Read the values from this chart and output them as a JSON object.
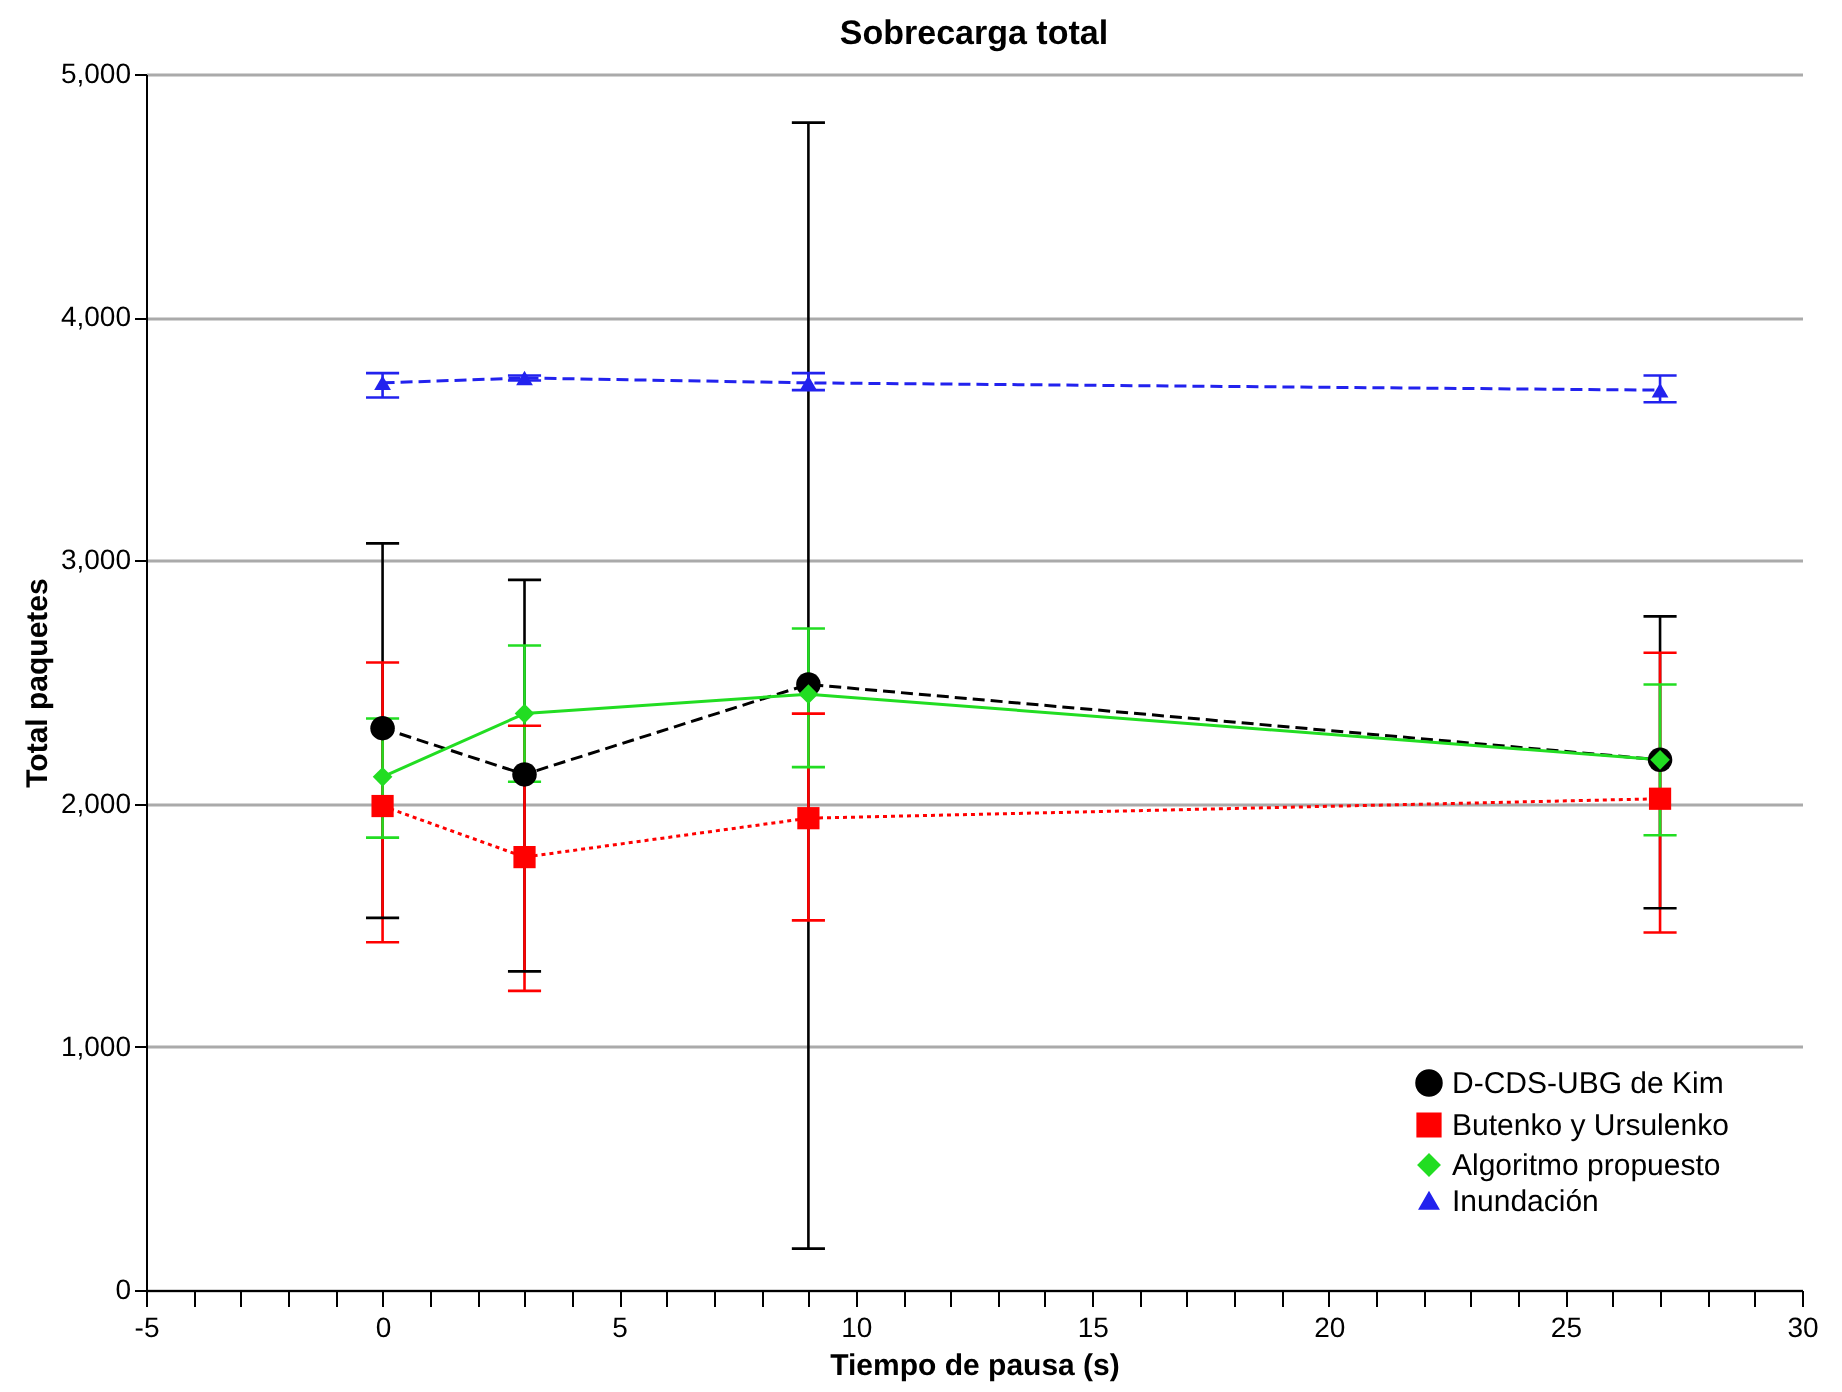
{
  "chart_data": {
    "type": "line",
    "title": "Sobrecarga total",
    "xlabel": "Tiempo de pausa (s)",
    "ylabel": "Total paquetes",
    "x": [
      0,
      3,
      9,
      27
    ],
    "xlim": [
      -5,
      30
    ],
    "xticks": [
      -5,
      {
        "value": -4,
        "label": null
      },
      {
        "value": -3,
        "label": null
      },
      {
        "value": -2,
        "label": null
      },
      {
        "value": -1,
        "label": null
      },
      0,
      {
        "value": 1,
        "label": null
      },
      {
        "value": 2,
        "label": null
      },
      {
        "value": 3,
        "label": null
      },
      {
        "value": 4,
        "label": null
      },
      5,
      {
        "value": 6,
        "label": null
      },
      {
        "value": 7,
        "label": null
      },
      {
        "value": 8,
        "label": null
      },
      {
        "value": 9,
        "label": null
      },
      10,
      {
        "value": 11,
        "label": null
      },
      {
        "value": 12,
        "label": null
      },
      {
        "value": 13,
        "label": null
      },
      {
        "value": 14,
        "label": null
      },
      15,
      {
        "value": 16,
        "label": null
      },
      {
        "value": 17,
        "label": null
      },
      {
        "value": 18,
        "label": null
      },
      {
        "value": 19,
        "label": null
      },
      20,
      {
        "value": 21,
        "label": null
      },
      {
        "value": 22,
        "label": null
      },
      {
        "value": 23,
        "label": null
      },
      {
        "value": 24,
        "label": null
      },
      25,
      {
        "value": 26,
        "label": null
      },
      {
        "value": 27,
        "label": null
      },
      {
        "value": 28,
        "label": null
      },
      {
        "value": 29,
        "label": null
      },
      30
    ],
    "ylim": [
      0,
      5000
    ],
    "yticks": [
      0,
      {
        "value": 1000,
        "label": "1,000"
      },
      {
        "value": 2000,
        "label": "2,000"
      },
      {
        "value": 3000,
        "label": "3,000"
      },
      {
        "value": 4000,
        "label": "4,000"
      },
      {
        "value": 5000,
        "label": "5,000"
      }
    ],
    "grid": "y",
    "legend": "bottom right",
    "series": [
      {
        "name": "D-CDS-UBG de Kim",
        "color": "#000000",
        "marker": "circle",
        "line_style": "dashed",
        "values": [
          2310,
          2120,
          2490,
          2180
        ],
        "errors": [
          [
            1530,
            3070
          ],
          [
            1310,
            2920
          ],
          [
            170,
            4800
          ],
          [
            1570,
            2770
          ]
        ]
      },
      {
        "name": "Butenko y Ursulenko",
        "color": "#ff0000",
        "marker": "square",
        "line_style": "dotted",
        "values": [
          1990,
          1780,
          1940,
          2020
        ],
        "errors": [
          [
            1430,
            2580
          ],
          [
            1230,
            2320
          ],
          [
            1520,
            2370
          ],
          [
            1470,
            2620
          ]
        ]
      },
      {
        "name": "Algoritmo propuesto",
        "color": "#22dd22",
        "marker": "diamond",
        "line_style": "solid",
        "values": [
          2110,
          2370,
          2450,
          2180
        ],
        "errors": [
          [
            1860,
            2350
          ],
          [
            2090,
            2650
          ],
          [
            2150,
            2720
          ],
          [
            1870,
            2490
          ]
        ]
      },
      {
        "name": "Inundación",
        "color": "#2222ee",
        "marker": "triangle",
        "line_style": "dashed",
        "values": [
          3730,
          3750,
          3730,
          3700
        ],
        "errors": [
          [
            3670,
            3770
          ],
          [
            3740,
            3760
          ],
          [
            3700,
            3770
          ],
          [
            3650,
            3760
          ]
        ]
      }
    ]
  }
}
